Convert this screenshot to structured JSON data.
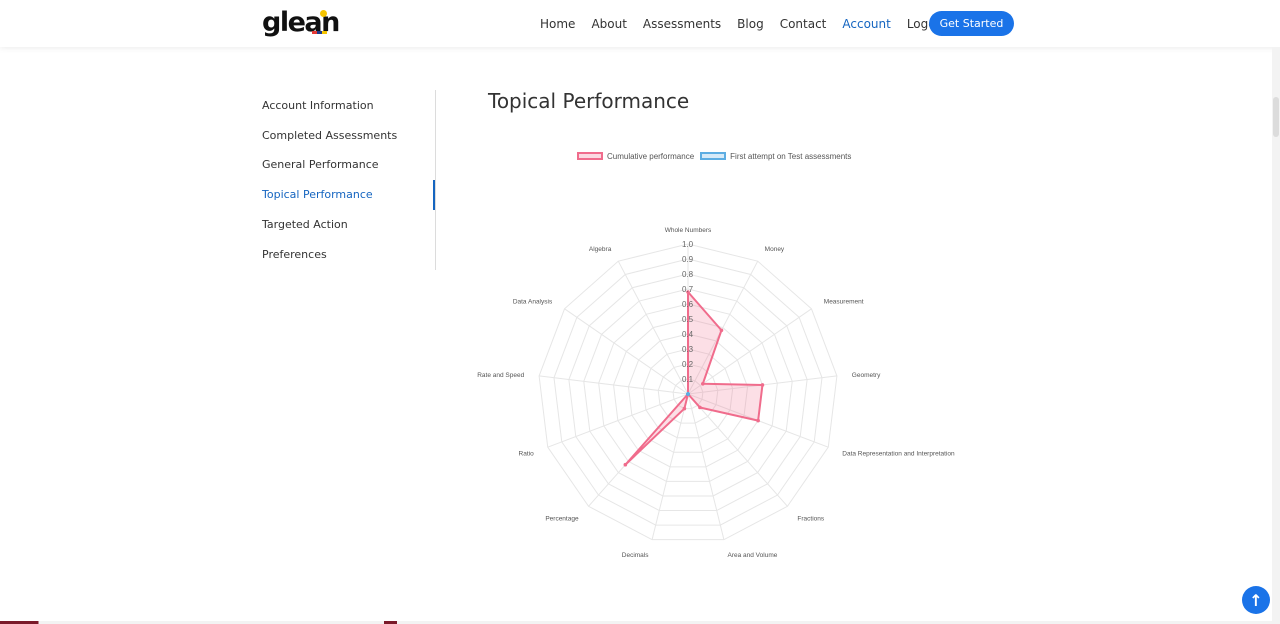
{
  "header": {
    "logo": "glean",
    "nav": [
      {
        "label": "Home",
        "active": false
      },
      {
        "label": "About",
        "active": false
      },
      {
        "label": "Assessments",
        "active": false
      },
      {
        "label": "Blog",
        "active": false
      },
      {
        "label": "Contact",
        "active": false
      },
      {
        "label": "Account",
        "active": true
      },
      {
        "label": "Logout",
        "active": false
      }
    ],
    "cta_label": "Get Started"
  },
  "sidebar": {
    "items": [
      {
        "label": "Account Information",
        "active": false
      },
      {
        "label": "Completed Assessments",
        "active": false
      },
      {
        "label": "General Performance",
        "active": false
      },
      {
        "label": "Topical Performance",
        "active": true
      },
      {
        "label": "Targeted Action",
        "active": false
      },
      {
        "label": "Preferences",
        "active": false
      }
    ]
  },
  "main": {
    "title": "Topical Performance"
  },
  "chart_data": {
    "type": "radar",
    "axes": [
      "Whole Numbers",
      "Money",
      "Measurement",
      "Geometry",
      "Data Representation and Interpretation",
      "Fractions",
      "Area and Volume",
      "Decimals",
      "Percentage",
      "Ratio",
      "Rate and Speed",
      "Data Analysis",
      "Algebra"
    ],
    "ticks": [
      "0.1",
      "0.2",
      "0.3",
      "0.4",
      "0.5",
      "0.6",
      "0.7",
      "0.8",
      "0.9",
      "1.0"
    ],
    "range": [
      0,
      1.0
    ],
    "legend_position": "top",
    "series": [
      {
        "name": "Cumulative performance",
        "color": "#f06c8c",
        "values": [
          0.68,
          0.48,
          0.12,
          0.5,
          0.5,
          0.12,
          0.0,
          0.1,
          0.63,
          0.0,
          0.0,
          0.0,
          0.0
        ]
      },
      {
        "name": "First attempt on Test assessments",
        "color": "#5dade2",
        "values": [
          0,
          0,
          0,
          0,
          0,
          0,
          0,
          0,
          0,
          0,
          0,
          0,
          0
        ]
      }
    ]
  },
  "colors": {
    "accent": "#1a73e8",
    "active_text": "#1565c0"
  }
}
